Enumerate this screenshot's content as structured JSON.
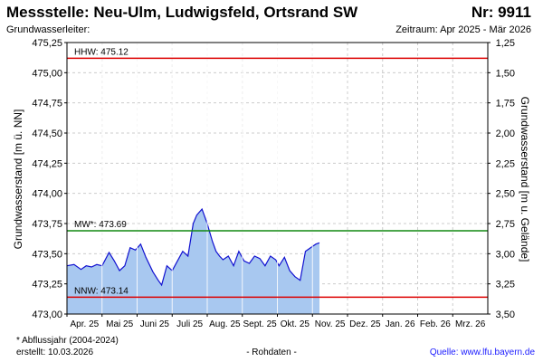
{
  "header": {
    "title": "Messstelle: Neu-Ulm, Ludwigsfeld, Ortsrand SW",
    "number": "Nr: 9911",
    "aquifer_label": "Grundwasserleiter:",
    "period": "Zeitraum: Apr 2025 - Mär 2026"
  },
  "footer": {
    "footnote": "* Abflussjahr (2004-2024)",
    "created": "erstellt:  10.03.2026",
    "raw": "- Rohdaten -",
    "source": "Quelle: www.lfu.bayern.de"
  },
  "colors": {
    "area": "#a8c8f0",
    "line": "#1010d0",
    "hhw": "#dd0000",
    "nnw": "#dd0000",
    "mw": "#118811",
    "grid": "#cccccc",
    "month_grid": "#ffffff"
  },
  "chart_data": {
    "type": "area",
    "ylabel_left": "Grundwasserstand [m ü. NN]",
    "ylabel_right": "Grundwasserstand [m u. Gelände]",
    "ylim": [
      473.0,
      475.25
    ],
    "ylim_right": [
      3.5,
      1.25
    ],
    "y_ticks_left": [
      "475,25",
      "475,00",
      "474,75",
      "474,50",
      "474,25",
      "474,00",
      "473,75",
      "473,50",
      "473,25",
      "473,00"
    ],
    "y_ticks_right": [
      "1,25",
      "1,50",
      "1,75",
      "2,00",
      "2,25",
      "2,50",
      "2,75",
      "3,00",
      "3,25",
      "3,50"
    ],
    "months": [
      "Apr. 25",
      "Mai 25",
      "Juni 25",
      "Juli 25",
      "Aug. 25",
      "Sept. 25",
      "Okt. 25",
      "Nov. 25",
      "Dez. 25",
      "Jan. 26",
      "Feb. 26",
      "Mrz. 26"
    ],
    "reference_lines": [
      {
        "label": "HHW: 475.12",
        "value": 475.12,
        "kind": "hhw"
      },
      {
        "label": "MW*: 473.69",
        "value": 473.69,
        "kind": "mw"
      },
      {
        "label": "NNW: 473.14",
        "value": 473.14,
        "kind": "nnw"
      }
    ],
    "series": [
      {
        "x_months": [
          0.0,
          0.2,
          0.4,
          0.55,
          0.7,
          0.85,
          1.0,
          1.2,
          1.35,
          1.5,
          1.65,
          1.8,
          1.95,
          2.1,
          2.25,
          2.45,
          2.6,
          2.7,
          2.85,
          3.0,
          3.15,
          3.3,
          3.45,
          3.6,
          3.7,
          3.85,
          4.0,
          4.05,
          4.15,
          4.25,
          4.35,
          4.45,
          4.6,
          4.75,
          4.9,
          5.05,
          5.2,
          5.35,
          5.5,
          5.65,
          5.8,
          5.95,
          6.05,
          6.2,
          6.35,
          6.5,
          6.65,
          6.8,
          7.0,
          7.1,
          7.2
        ],
        "values": [
          473.4,
          473.41,
          473.37,
          473.4,
          473.39,
          473.41,
          473.4,
          473.51,
          473.44,
          473.36,
          473.4,
          473.55,
          473.53,
          473.58,
          473.47,
          473.35,
          473.28,
          473.24,
          473.4,
          473.36,
          473.44,
          473.52,
          473.48,
          473.75,
          473.82,
          473.87,
          473.75,
          473.7,
          473.6,
          473.52,
          473.48,
          473.45,
          473.48,
          473.4,
          473.52,
          473.44,
          473.42,
          473.48,
          473.46,
          473.4,
          473.48,
          473.45,
          473.4,
          473.47,
          473.36,
          473.31,
          473.28,
          473.52,
          473.56,
          473.58,
          473.59
        ]
      }
    ],
    "grid": true
  }
}
